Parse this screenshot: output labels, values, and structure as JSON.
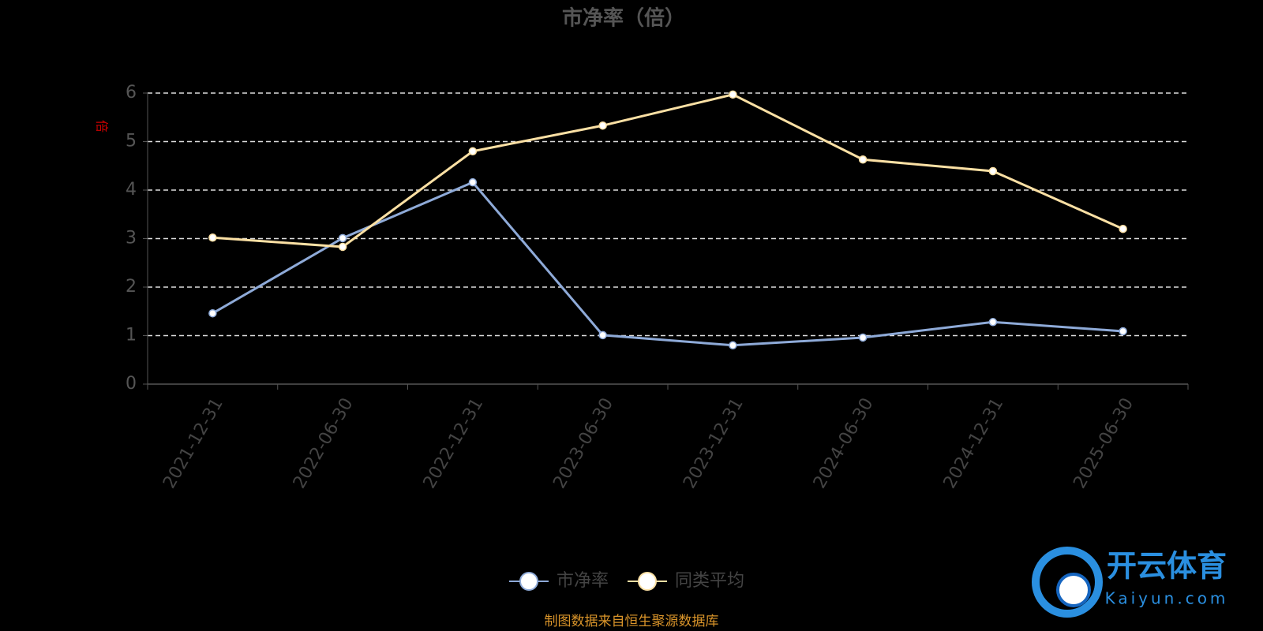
{
  "chart_data": {
    "type": "line",
    "title": "市净率（倍）",
    "y_label": "倍",
    "categories": [
      "2021-12-31",
      "2022-06-30",
      "2022-12-31",
      "2023-06-30",
      "2023-12-31",
      "2024-06-30",
      "2024-12-31",
      "2025-06-30"
    ],
    "series": [
      {
        "name": "市净率",
        "color": "#8eaad8",
        "values": [
          1.46,
          3.01,
          4.16,
          1.01,
          0.8,
          0.96,
          1.28,
          1.09
        ]
      },
      {
        "name": "同类平均",
        "color": "#fbe0a4",
        "values": [
          3.02,
          2.83,
          4.8,
          5.33,
          5.97,
          4.63,
          4.39,
          3.2
        ]
      }
    ],
    "ylim": [
      0,
      6
    ],
    "yticks": [
      0,
      1,
      2,
      3,
      4,
      5,
      6
    ],
    "grid": true,
    "legend": "bottom",
    "source": "制图数据来自恒生聚源数据库",
    "watermark": {
      "text": "开云体育",
      "sub": "Kaiyun.com"
    }
  }
}
